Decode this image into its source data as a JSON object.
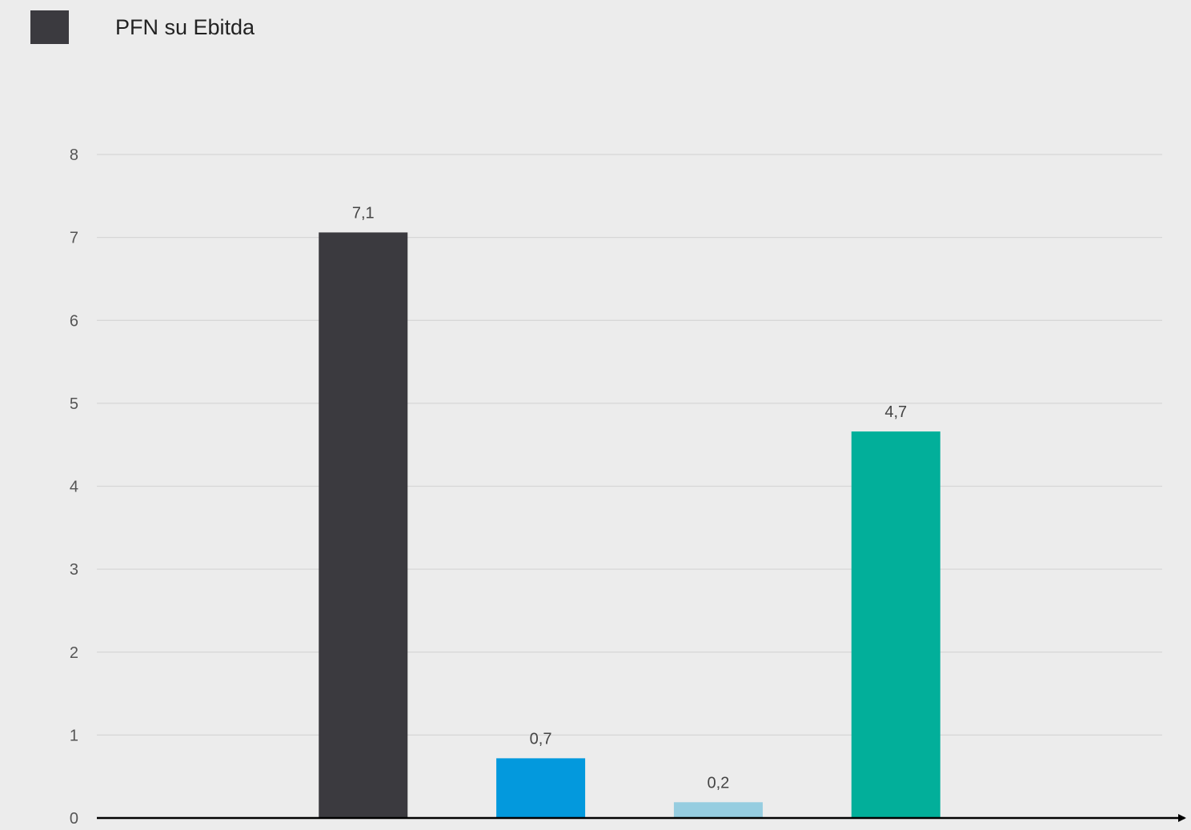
{
  "legend": {
    "label": "PFN su Ebitda",
    "color": "#3b3a3f"
  },
  "chart_data": {
    "type": "bar",
    "title": "",
    "xlabel": "",
    "ylabel": "",
    "ylim": [
      0,
      8
    ],
    "grid": true,
    "legend_position": "top-left",
    "yticks": [
      "0",
      "1",
      "2",
      "3",
      "4",
      "5",
      "6",
      "7",
      "8"
    ],
    "categories": [
      "",
      "",
      "",
      "",
      "",
      ""
    ],
    "values": [
      null,
      7.06,
      0.72,
      0.19,
      4.66,
      null
    ],
    "data_labels": [
      "",
      "7,1",
      "0,7",
      "0,2",
      "4,7",
      ""
    ],
    "bar_colors": [
      "",
      "#3b3a3f",
      "#0399dd",
      "#96cde0",
      "#02af9a",
      ""
    ],
    "series": [
      {
        "name": "PFN su Ebitda",
        "values": [
          null,
          7.06,
          0.72,
          0.19,
          4.66,
          null
        ]
      }
    ]
  }
}
